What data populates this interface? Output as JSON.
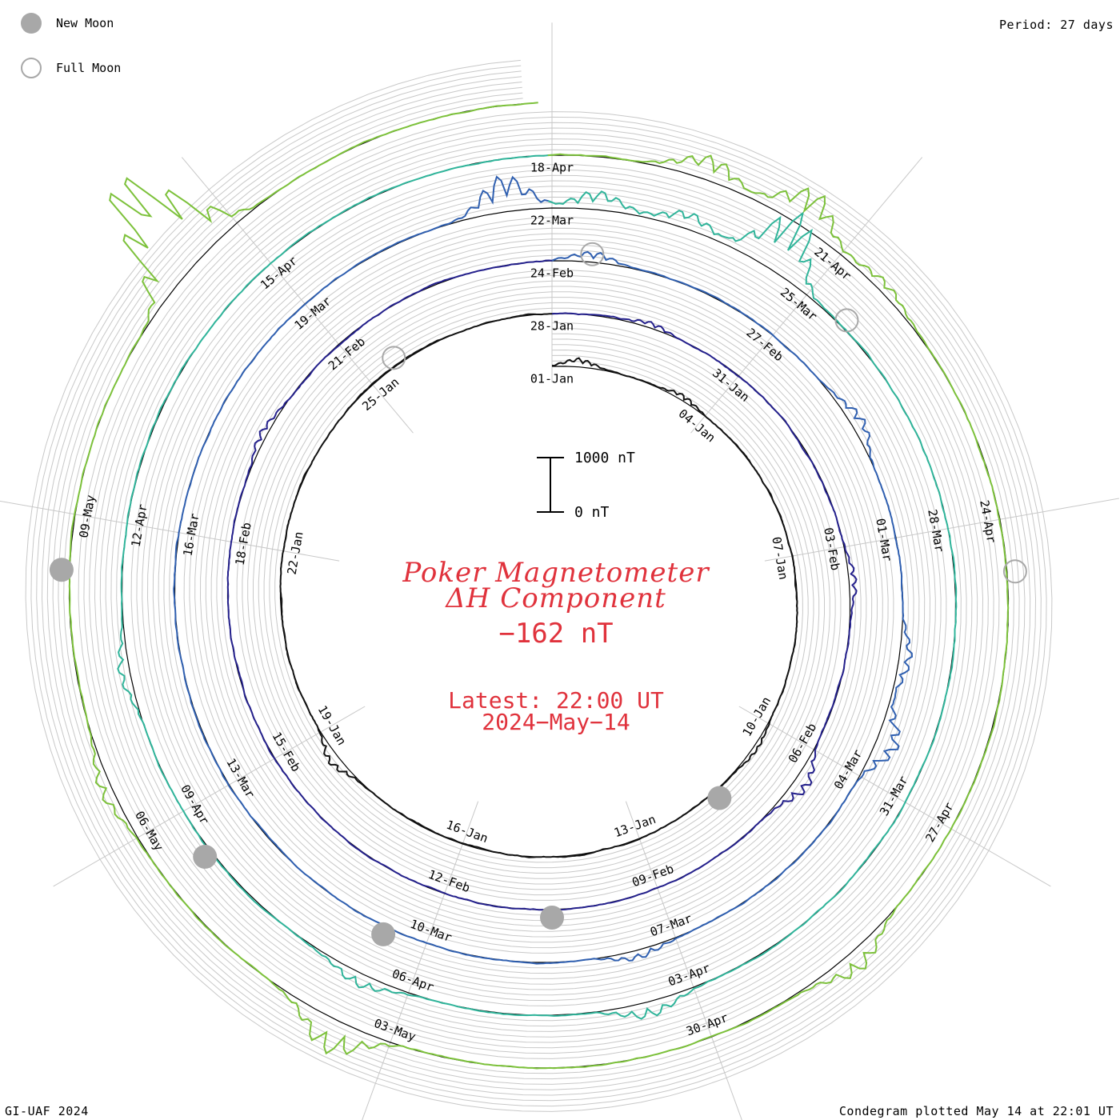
{
  "legend": {
    "new_moon_label": "New Moon",
    "full_moon_label": "Full Moon"
  },
  "period_label": "Period: 27 days",
  "footer": {
    "left": "GI-UAF 2024",
    "right": "Condegram plotted May 14 at 22:01 UT"
  },
  "center": {
    "title_line1": "Poker Magnetometer",
    "title_line2": "ΔH Component",
    "current_value": "−162 nT",
    "latest_line1": "Latest: 22:00 UT",
    "latest_line2": "2024−May−14"
  },
  "scale_bar": {
    "top_label": "1000 nT",
    "bottom_label": "0 nT"
  },
  "colors": {
    "accent_text": "#e0323c",
    "grid": "#c8c8c8",
    "moon": "#a8a8a8",
    "turn_colors": [
      "#111111",
      "#24208c",
      "#2f5fb0",
      "#2fb49a",
      "#7cc13a",
      "#b9c22a",
      "#c8a024",
      "#c86a1c",
      "#b8281c"
    ]
  },
  "chart_data": {
    "type": "spiral",
    "title": "Poker Magnetometer ΔH Component",
    "period_days": 27,
    "start_date": "2024-01-01",
    "end_date": "2024-05-14",
    "units": "nT",
    "date_labels": [
      "01-Jan",
      "04-Jan",
      "07-Jan",
      "10-Jan",
      "13-Jan",
      "16-Jan",
      "19-Jan",
      "22-Jan",
      "25-Jan",
      "28-Jan",
      "31-Jan",
      "03-Feb",
      "06-Feb",
      "09-Feb",
      "12-Feb",
      "15-Feb",
      "18-Feb",
      "21-Feb",
      "24-Feb",
      "27-Feb",
      "01-Mar",
      "04-Mar",
      "07-Mar",
      "10-Mar",
      "13-Mar",
      "16-Mar",
      "19-Mar",
      "22-Mar",
      "25-Mar",
      "28-Mar",
      "31-Mar",
      "03-Apr",
      "06-Apr",
      "09-Apr",
      "12-Apr",
      "15-Apr",
      "18-Apr",
      "21-Apr",
      "24-Apr",
      "27-Apr",
      "30-Apr",
      "03-May",
      "06-May",
      "09-May"
    ],
    "new_moon_dates": [
      "11-Jan",
      "10-Feb",
      "10-Mar",
      "08-Apr",
      "08-May"
    ],
    "full_moon_dates": [
      "25-Jan",
      "24-Feb",
      "25-Mar",
      "24-Apr"
    ],
    "disturbances": [
      {
        "date": "01-Jan",
        "peak_nT": 150
      },
      {
        "date": "03-Jan",
        "peak_nT": 120
      },
      {
        "date": "10-Jan",
        "peak_nT": 80
      },
      {
        "date": "18-Jan",
        "peak_nT": 200
      },
      {
        "date": "29-Jan",
        "peak_nT": 120
      },
      {
        "date": "03-Feb",
        "peak_nT": 150
      },
      {
        "date": "06-Feb",
        "peak_nT": 300
      },
      {
        "date": "19-Feb",
        "peak_nT": 150
      },
      {
        "date": "24-Feb",
        "peak_nT": 200
      },
      {
        "date": "28-Feb",
        "peak_nT": 250
      },
      {
        "date": "02-Mar",
        "peak_nT": 250
      },
      {
        "date": "03-Mar",
        "peak_nT": 450
      },
      {
        "date": "07-Mar",
        "peak_nT": 180
      },
      {
        "date": "21-Mar",
        "peak_nT": 700
      },
      {
        "date": "22-Mar",
        "peak_nT": 350
      },
      {
        "date": "23-Mar",
        "peak_nT": 300
      },
      {
        "date": "24-Mar",
        "peak_nT": 1200
      },
      {
        "date": "03-Apr",
        "peak_nT": 300
      },
      {
        "date": "06-Apr",
        "peak_nT": 250
      },
      {
        "date": "10-Apr",
        "peak_nT": 200
      },
      {
        "date": "19-Apr",
        "peak_nT": 450
      },
      {
        "date": "20-Apr",
        "peak_nT": 700
      },
      {
        "date": "21-Apr",
        "peak_nT": 200
      },
      {
        "date": "28-Apr",
        "peak_nT": 400
      },
      {
        "date": "03-May",
        "peak_nT": 650
      },
      {
        "date": "06-May",
        "peak_nT": 250
      },
      {
        "date": "11-May",
        "peak_nT": 2200
      }
    ]
  }
}
